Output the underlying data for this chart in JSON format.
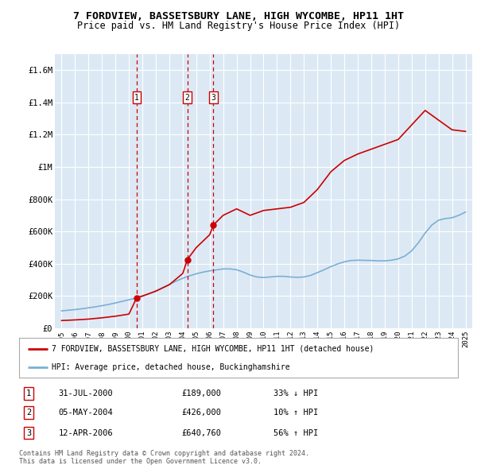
{
  "title": "7 FORDVIEW, BASSETSBURY LANE, HIGH WYCOMBE, HP11 1HT",
  "subtitle": "Price paid vs. HM Land Registry's House Price Index (HPI)",
  "title_fontsize": 9.5,
  "subtitle_fontsize": 8.5,
  "ylabel_ticks": [
    "£0",
    "£200K",
    "£400K",
    "£600K",
    "£800K",
    "£1M",
    "£1.2M",
    "£1.4M",
    "£1.6M"
  ],
  "ytick_values": [
    0,
    200000,
    400000,
    600000,
    800000,
    1000000,
    1200000,
    1400000,
    1600000
  ],
  "ylim": [
    0,
    1700000
  ],
  "xlim_start": 1994.5,
  "xlim_end": 2025.5,
  "plot_bg_color": "#dce9f5",
  "grid_color": "#ffffff",
  "red_line_color": "#cc0000",
  "blue_line_color": "#7bafd4",
  "transactions": [
    {
      "num": 1,
      "year": 2000.58,
      "price": 189000,
      "label": "31-JUL-2000",
      "price_str": "£189,000",
      "hpi_str": "33% ↓ HPI"
    },
    {
      "num": 2,
      "year": 2004.34,
      "price": 426000,
      "label": "05-MAY-2004",
      "price_str": "£426,000",
      "hpi_str": "10% ↑ HPI"
    },
    {
      "num": 3,
      "year": 2006.28,
      "price": 640760,
      "label": "12-APR-2006",
      "price_str": "£640,760",
      "hpi_str": "56% ↑ HPI"
    }
  ],
  "legend_line1": "7 FORDVIEW, BASSETSBURY LANE, HIGH WYCOMBE, HP11 1HT (detached house)",
  "legend_line2": "HPI: Average price, detached house, Buckinghamshire",
  "footnote": "Contains HM Land Registry data © Crown copyright and database right 2024.\nThis data is licensed under the Open Government Licence v3.0.",
  "hpi_years": [
    1995.0,
    1995.5,
    1996.0,
    1996.5,
    1997.0,
    1997.5,
    1998.0,
    1998.5,
    1999.0,
    1999.5,
    2000.0,
    2000.5,
    2001.0,
    2001.5,
    2002.0,
    2002.5,
    2003.0,
    2003.5,
    2004.0,
    2004.5,
    2005.0,
    2005.5,
    2006.0,
    2006.5,
    2007.0,
    2007.5,
    2008.0,
    2008.5,
    2009.0,
    2009.5,
    2010.0,
    2010.5,
    2011.0,
    2011.5,
    2012.0,
    2012.5,
    2013.0,
    2013.5,
    2014.0,
    2014.5,
    2015.0,
    2015.5,
    2016.0,
    2016.5,
    2017.0,
    2017.5,
    2018.0,
    2018.5,
    2019.0,
    2019.5,
    2020.0,
    2020.5,
    2021.0,
    2021.5,
    2022.0,
    2022.5,
    2023.0,
    2023.5,
    2024.0,
    2024.5,
    2025.0
  ],
  "hpi_values": [
    108000,
    112000,
    116000,
    121000,
    127000,
    133000,
    140000,
    148000,
    157000,
    167000,
    177000,
    187000,
    199000,
    214000,
    232000,
    252000,
    272000,
    292000,
    310000,
    325000,
    338000,
    348000,
    356000,
    362000,
    368000,
    368000,
    363000,
    348000,
    330000,
    318000,
    315000,
    318000,
    322000,
    322000,
    318000,
    316000,
    318000,
    328000,
    345000,
    363000,
    382000,
    399000,
    412000,
    420000,
    422000,
    421000,
    420000,
    418000,
    418000,
    422000,
    430000,
    448000,
    480000,
    530000,
    590000,
    640000,
    670000,
    680000,
    685000,
    700000,
    720000
  ],
  "red_years": [
    1995.0,
    1996.0,
    1997.0,
    1998.0,
    1999.0,
    2000.0,
    2000.58,
    2001.0,
    2002.0,
    2003.0,
    2004.0,
    2004.34,
    2005.0,
    2006.0,
    2006.28,
    2007.0,
    2008.0,
    2009.0,
    2010.0,
    2011.0,
    2012.0,
    2013.0,
    2014.0,
    2015.0,
    2016.0,
    2017.0,
    2018.0,
    2019.0,
    2020.0,
    2021.0,
    2022.0,
    2023.0,
    2024.0,
    2025.0
  ],
  "red_values": [
    48000,
    52000,
    57000,
    65000,
    75000,
    88000,
    189000,
    200000,
    230000,
    270000,
    340000,
    426000,
    500000,
    580000,
    640760,
    700000,
    740000,
    700000,
    730000,
    740000,
    750000,
    780000,
    860000,
    970000,
    1040000,
    1080000,
    1110000,
    1140000,
    1170000,
    1260000,
    1350000,
    1290000,
    1230000,
    1220000
  ]
}
